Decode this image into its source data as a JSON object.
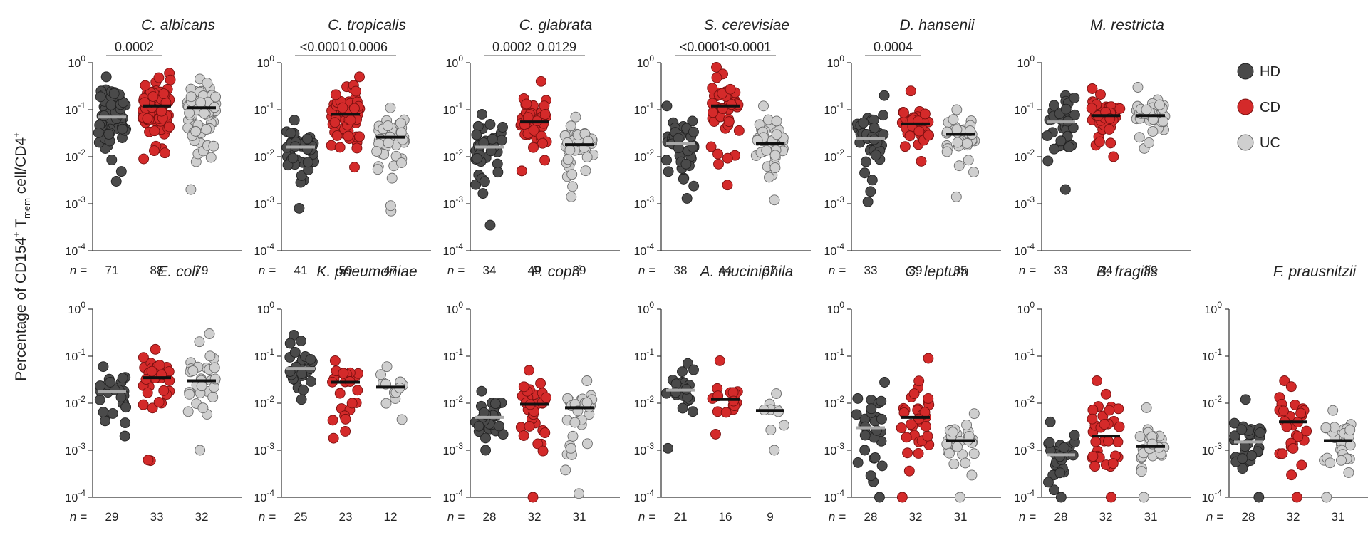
{
  "chart_data": {
    "type": "scatter",
    "subtype": "dot-strip plot with median bars, log scale",
    "ylabel": {
      "prefix": "Percentage of CD154",
      "sup1": "+",
      "mid": " T",
      "sub": "mem",
      "suffix": " cell/CD4",
      "sup2": "+"
    },
    "yscale": "log",
    "ylim": [
      0.0001,
      1
    ],
    "yticks": [
      {
        "base": "10",
        "exp": "0"
      },
      {
        "base": "10",
        "exp": "-1"
      },
      {
        "base": "10",
        "exp": "-2"
      },
      {
        "base": "10",
        "exp": "-3"
      },
      {
        "base": "10",
        "exp": "-4"
      }
    ],
    "n_prefix": "n =",
    "legend": {
      "placement": "top-right",
      "entries": [
        {
          "label": "HD",
          "color": "#4a4a4a"
        },
        {
          "label": "CD",
          "color": "#d42a2a"
        },
        {
          "label": "UC",
          "color": "#cfcfcf"
        }
      ]
    },
    "colors": {
      "HD": "#4a4a4a",
      "CD": "#d42a2a",
      "UC": "#cfcfcf",
      "median_dark": "#111111",
      "median_light": "#a8a8a8"
    },
    "panels": [
      {
        "title": "C. albicans",
        "n": [
          71,
          88,
          79
        ],
        "median": [
          0.07,
          0.12,
          0.11
        ],
        "range": [
          [
            0.003,
            0.5
          ],
          [
            0.009,
            0.6
          ],
          [
            0.002,
            0.45
          ]
        ],
        "pvalues": [
          {
            "text": "0.0002",
            "from": 0,
            "to": 1
          }
        ]
      },
      {
        "title": "C. tropicalis",
        "n": [
          41,
          59,
          47
        ],
        "median": [
          0.016,
          0.08,
          0.026
        ],
        "range": [
          [
            0.0008,
            0.06
          ],
          [
            0.006,
            0.5
          ],
          [
            0.0007,
            0.11
          ]
        ],
        "pvalues": [
          {
            "text": "<0.0001",
            "from": 0,
            "to": 1
          },
          {
            "text": "0.0006",
            "from": 1,
            "to": 2
          }
        ]
      },
      {
        "title": "C. glabrata",
        "n": [
          34,
          49,
          39
        ],
        "median": [
          0.016,
          0.055,
          0.018
        ],
        "range": [
          [
            0.00035,
            0.08
          ],
          [
            0.005,
            0.4
          ],
          [
            0.0014,
            0.07
          ]
        ],
        "pvalues": [
          {
            "text": "0.0002",
            "from": 0,
            "to": 1
          },
          {
            "text": "0.0129",
            "from": 1,
            "to": 2
          }
        ]
      },
      {
        "title": "S. cerevisiae",
        "n": [
          38,
          44,
          37
        ],
        "median": [
          0.019,
          0.12,
          0.019
        ],
        "range": [
          [
            0.0013,
            0.12
          ],
          [
            0.0025,
            0.8
          ],
          [
            0.0012,
            0.12
          ]
        ],
        "pvalues": [
          {
            "text": "<0.0001",
            "from": 0,
            "to": 1
          },
          {
            "text": "<0.0001",
            "from": 1,
            "to": 2
          }
        ]
      },
      {
        "title": "D. hansenii",
        "n": [
          33,
          39,
          35
        ],
        "median": [
          0.024,
          0.05,
          0.03
        ],
        "range": [
          [
            0.0011,
            0.2
          ],
          [
            0.008,
            0.25
          ],
          [
            0.0014,
            0.1
          ]
        ],
        "pvalues": [
          {
            "text": "0.0004",
            "from": 0,
            "to": 1
          }
        ]
      },
      {
        "title": "M. restricta",
        "n": [
          33,
          44,
          39
        ],
        "median": [
          0.055,
          0.075,
          0.075
        ],
        "range": [
          [
            0.002,
            0.2
          ],
          [
            0.01,
            0.28
          ],
          [
            0.015,
            0.3
          ]
        ],
        "pvalues": []
      },
      {
        "title": "E. coli",
        "n": [
          29,
          33,
          32
        ],
        "median": [
          0.018,
          0.035,
          0.03
        ],
        "range": [
          [
            0.002,
            0.06
          ],
          [
            0.0006,
            0.14
          ],
          [
            0.001,
            0.3
          ]
        ],
        "pvalues": []
      },
      {
        "title": "K. pneumoniae",
        "n": [
          25,
          23,
          12
        ],
        "median": [
          0.055,
          0.028,
          0.022
        ],
        "range": [
          [
            0.012,
            0.28
          ],
          [
            0.0018,
            0.08
          ],
          [
            0.0045,
            0.06
          ]
        ],
        "pvalues": []
      },
      {
        "title": "P. copri",
        "n": [
          28,
          32,
          31
        ],
        "median": [
          0.005,
          0.0095,
          0.008
        ],
        "range": [
          [
            0.001,
            0.018
          ],
          [
            0.0001,
            0.05
          ],
          [
            0.00012,
            0.03
          ]
        ],
        "pvalues": []
      },
      {
        "title": "A. muciniphila",
        "n": [
          21,
          16,
          9
        ],
        "median": [
          0.019,
          0.012,
          0.007
        ],
        "range": [
          [
            0.0011,
            0.07
          ],
          [
            0.0022,
            0.08
          ],
          [
            0.001,
            0.016
          ]
        ],
        "pvalues": []
      },
      {
        "title": "C. leptum",
        "n": [
          28,
          32,
          31
        ],
        "median": [
          0.003,
          0.005,
          0.0016
        ],
        "range": [
          [
            0.0001,
            0.028
          ],
          [
            0.0001,
            0.09
          ],
          [
            0.0001,
            0.006
          ]
        ],
        "pvalues": []
      },
      {
        "title": "B. fragilis",
        "n": [
          28,
          32,
          31
        ],
        "median": [
          0.0008,
          0.002,
          0.0012
        ],
        "range": [
          [
            0.0001,
            0.004
          ],
          [
            0.0001,
            0.03
          ],
          [
            0.0001,
            0.008
          ]
        ],
        "pvalues": []
      },
      {
        "title": "F. prausnitzii",
        "n": [
          28,
          32,
          31
        ],
        "median": [
          0.0015,
          0.004,
          0.0016
        ],
        "range": [
          [
            0.0001,
            0.012
          ],
          [
            0.0001,
            0.03
          ],
          [
            0.0001,
            0.007
          ]
        ],
        "pvalues": []
      }
    ]
  }
}
